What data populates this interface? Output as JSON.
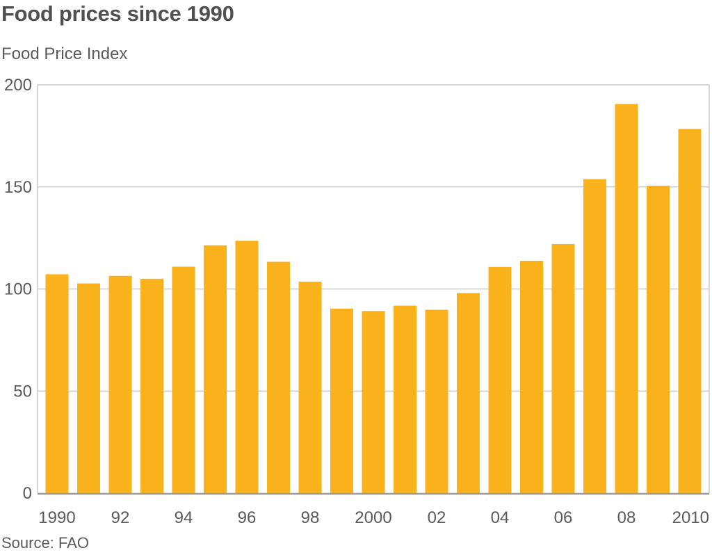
{
  "chart_data": {
    "type": "bar",
    "title": "Food prices since 1990",
    "ylabel": "Food Price Index",
    "xlabel": "",
    "source": "Source: FAO",
    "categories": [
      1990,
      1991,
      1992,
      1993,
      1994,
      1995,
      1996,
      1997,
      1998,
      1999,
      2000,
      2001,
      2002,
      2003,
      2004,
      2005,
      2006,
      2007,
      2008,
      2009,
      2010
    ],
    "values": [
      107.2,
      102.7,
      106.4,
      105.0,
      110.9,
      121.4,
      123.6,
      113.3,
      103.6,
      90.4,
      89.2,
      91.8,
      89.8,
      98.0,
      110.8,
      113.8,
      122.0,
      153.8,
      190.6,
      150.6,
      178.4
    ],
    "x_tick_labels": [
      {
        "year": 1990,
        "label": "1990"
      },
      {
        "year": 1992,
        "label": "92"
      },
      {
        "year": 1994,
        "label": "94"
      },
      {
        "year": 1996,
        "label": "96"
      },
      {
        "year": 1998,
        "label": "98"
      },
      {
        "year": 2000,
        "label": "2000"
      },
      {
        "year": 2002,
        "label": "02"
      },
      {
        "year": 2004,
        "label": "04"
      },
      {
        "year": 2006,
        "label": "06"
      },
      {
        "year": 2008,
        "label": "08"
      },
      {
        "year": 2010,
        "label": "2010"
      }
    ],
    "y_ticks": [
      0,
      50,
      100,
      150,
      200
    ],
    "ylim": [
      0,
      200
    ],
    "grid": true,
    "legend": "none",
    "colors": {
      "bar": "#f9b21b",
      "grid": "#cccccc",
      "axis": "#9a9a9a",
      "text": "#5a5a5a"
    }
  }
}
